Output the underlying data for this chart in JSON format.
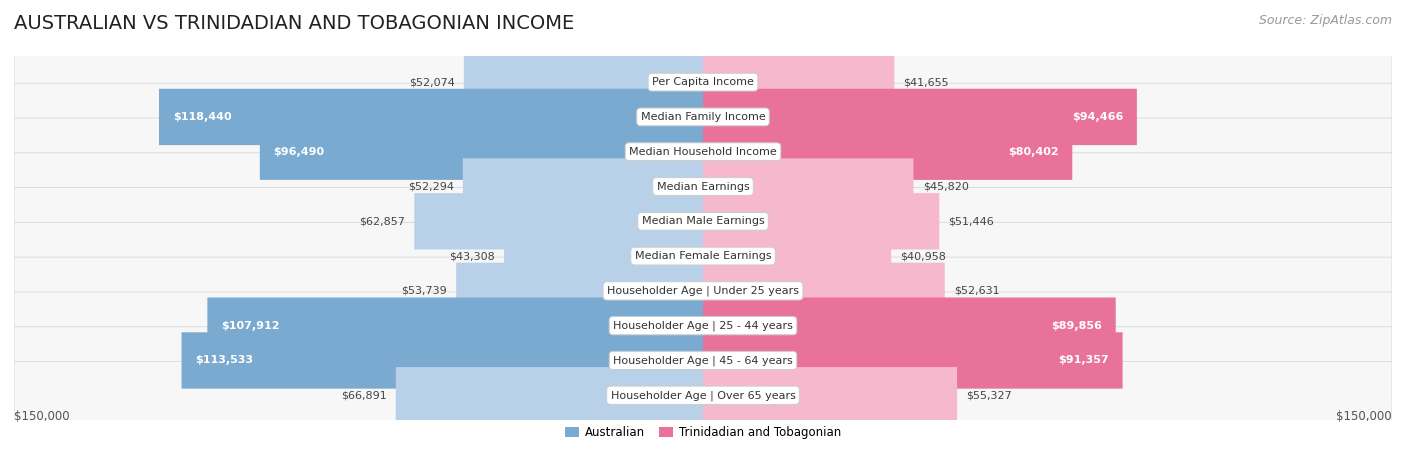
{
  "title": "AUSTRALIAN VS TRINIDADIAN AND TOBAGONIAN INCOME",
  "source": "Source: ZipAtlas.com",
  "categories": [
    "Per Capita Income",
    "Median Family Income",
    "Median Household Income",
    "Median Earnings",
    "Median Male Earnings",
    "Median Female Earnings",
    "Householder Age | Under 25 years",
    "Householder Age | 25 - 44 years",
    "Householder Age | 45 - 64 years",
    "Householder Age | Over 65 years"
  ],
  "australian_values": [
    52074,
    118440,
    96490,
    52294,
    62857,
    43308,
    53739,
    107912,
    113533,
    66891
  ],
  "trinidadian_values": [
    41655,
    94466,
    80402,
    45820,
    51446,
    40958,
    52631,
    89856,
    91357,
    55327
  ],
  "australian_labels": [
    "$52,074",
    "$118,440",
    "$96,490",
    "$52,294",
    "$62,857",
    "$43,308",
    "$53,739",
    "$107,912",
    "$113,533",
    "$66,891"
  ],
  "trinidadian_labels": [
    "$41,655",
    "$94,466",
    "$80,402",
    "$45,820",
    "$51,446",
    "$40,958",
    "$52,631",
    "$89,856",
    "$91,357",
    "$55,327"
  ],
  "aus_label_inside": [
    false,
    true,
    true,
    false,
    false,
    false,
    false,
    true,
    true,
    false
  ],
  "tri_label_inside": [
    false,
    true,
    true,
    false,
    false,
    false,
    false,
    true,
    true,
    false
  ],
  "max_value": 150000,
  "australian_color_light": "#b8d0e8",
  "australian_color_strong": "#7aaad0",
  "trinidadian_color_light": "#f5b8cc",
  "trinidadian_color_strong": "#e8729a",
  "row_bg_even": "#f5f5f5",
  "row_bg_odd": "#ebebeb",
  "row_border": "#d8d8d8",
  "label_color_dark": "#444444",
  "label_color_white": "#ffffff",
  "axis_label_left": "$150,000",
  "axis_label_right": "$150,000",
  "legend_australian": "Australian",
  "legend_trinidadian": "Trinidadian and Tobagonian",
  "title_fontsize": 14,
  "source_fontsize": 9,
  "cat_label_fontsize": 8,
  "val_label_fontsize": 8
}
